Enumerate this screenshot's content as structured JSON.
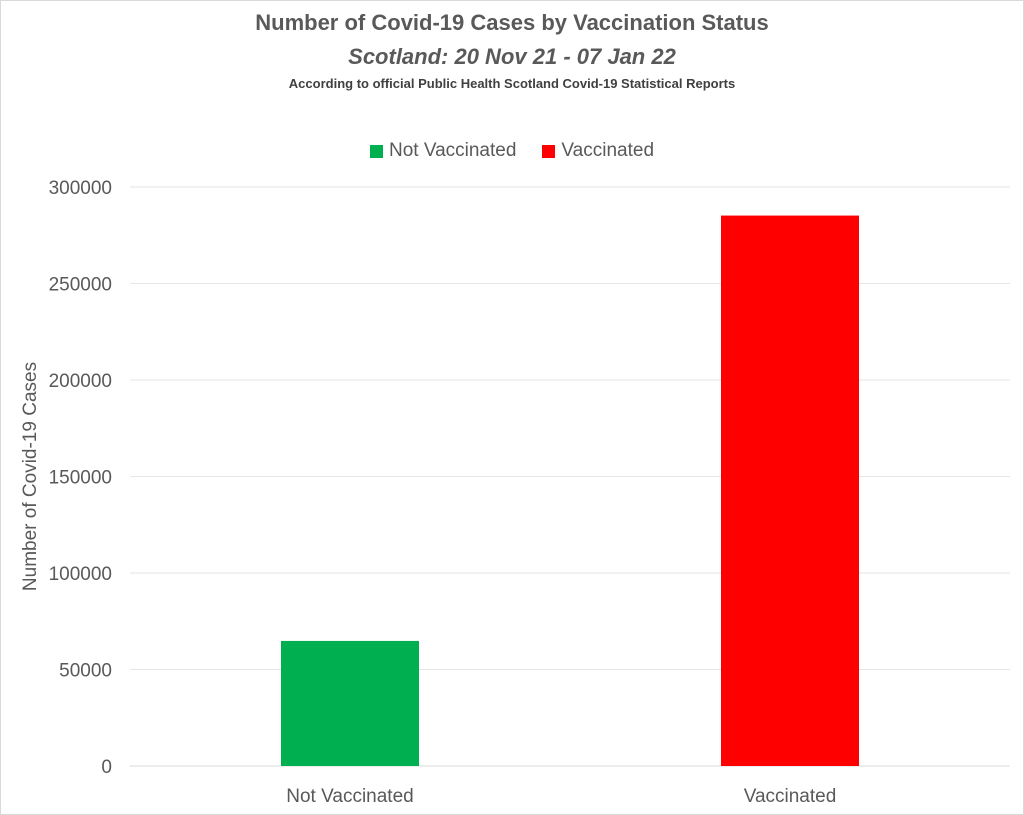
{
  "chart_data": {
    "type": "bar",
    "title": "Number of Covid-19 Cases by Vaccination Status",
    "subtitle": "Scotland: 20 Nov 21 - 07 Jan 22",
    "note": "According to official Public Health Scotland Covid-19 Statistical Reports",
    "categories": [
      "Not Vaccinated",
      "Vaccinated"
    ],
    "values": [
      64800,
      285200
    ],
    "colors": [
      "#00b050",
      "#ff0000"
    ],
    "legend": [
      {
        "label": "Not Vaccinated",
        "color": "#00b050"
      },
      {
        "label": "Vaccinated",
        "color": "#ff0000"
      }
    ],
    "legend_position": "top",
    "xlabel": "",
    "ylabel": "Number of Covid-19 Cases",
    "ylim": [
      0,
      300000
    ],
    "yticks": [
      "0",
      "50000",
      "100000",
      "150000",
      "200000",
      "250000",
      "300000"
    ],
    "grid": true
  }
}
